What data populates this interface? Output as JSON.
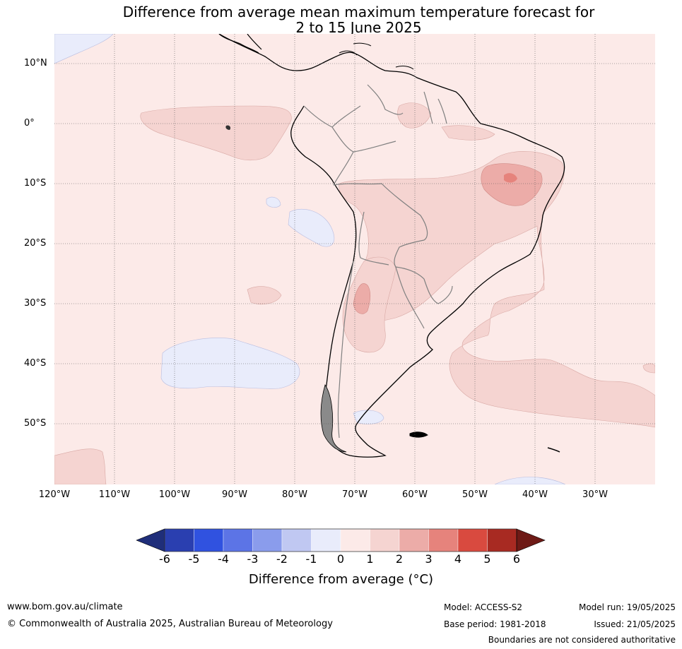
{
  "title": {
    "line1": "Difference from average mean maximum temperature forecast for",
    "line2": "2 to 15 June 2025"
  },
  "map": {
    "lat_labels": [
      "10°N",
      "0°",
      "10°S",
      "20°S",
      "30°S",
      "40°S",
      "50°S"
    ],
    "lon_labels": [
      "120°W",
      "110°W",
      "100°W",
      "90°W",
      "80°W",
      "70°W",
      "60°W",
      "50°W",
      "40°W",
      "30°W"
    ],
    "extent": {
      "lon_min": -120,
      "lon_max": -20,
      "lat_min": -60,
      "lat_max": 15
    },
    "gridlines": true,
    "background_anomaly": "0 to 1"
  },
  "colorbar": {
    "ticks": [
      "-6",
      "-5",
      "-4",
      "-3",
      "-2",
      "-1",
      "0",
      "1",
      "2",
      "3",
      "4",
      "5",
      "6"
    ],
    "colors": [
      "#1f2e7a",
      "#2a3fb0",
      "#3052e0",
      "#5c74e6",
      "#8a9cec",
      "#c0c8f2",
      "#e9ecfb",
      "#fceae8",
      "#f5d4d1",
      "#ecaca8",
      "#e6837c",
      "#d94a3f",
      "#a82a22",
      "#6e1a16"
    ],
    "label": "Difference from average (°C)"
  },
  "footer": {
    "website": "www.bom.gov.au/climate",
    "copyright": "© Commonwealth of Australia 2025, Australian Bureau of Meteorology",
    "model": "Model: ACCESS-S2",
    "base_period": "Base period: 1981-2018",
    "model_run": "Model run: 19/05/2025",
    "issued": "Issued: 21/05/2025",
    "disclaimer": "Boundaries are not considered authoritative"
  }
}
